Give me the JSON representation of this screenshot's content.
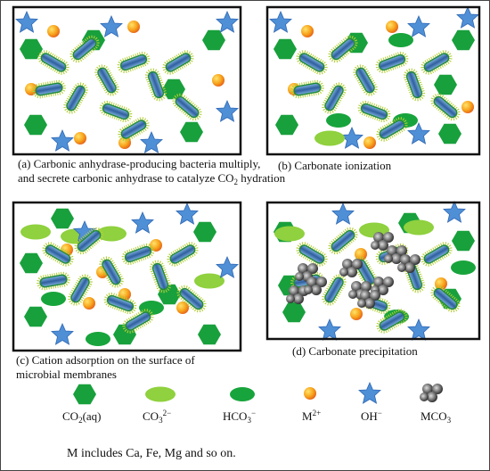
{
  "panels": [
    {
      "caption": [
        "(a) Carbonic anhydrase-producing bacteria multiply,",
        "and secrete carbonic anhydrase to catalyze CO",
        "2",
        " hydration"
      ]
    },
    {
      "caption": [
        "(b) Carbonate ionization"
      ]
    },
    {
      "caption": [
        "(c) Cation adsorption on the surface of",
        "microbial membranes"
      ]
    },
    {
      "caption": [
        "(d) Carbonate precipitation"
      ]
    }
  ],
  "legend": [
    {
      "label": [
        "CO",
        "2",
        "(aq)"
      ]
    },
    {
      "label": [
        "CO",
        "3",
        "2−"
      ]
    },
    {
      "label": [
        "HCO",
        "3",
        "−"
      ]
    },
    {
      "label": [
        "M",
        "2+"
      ]
    },
    {
      "label": [
        "OH",
        "−"
      ]
    },
    {
      "label": [
        "MCO",
        "3"
      ]
    }
  ],
  "note": "M includes Ca, Fe, Mg and so on."
}
